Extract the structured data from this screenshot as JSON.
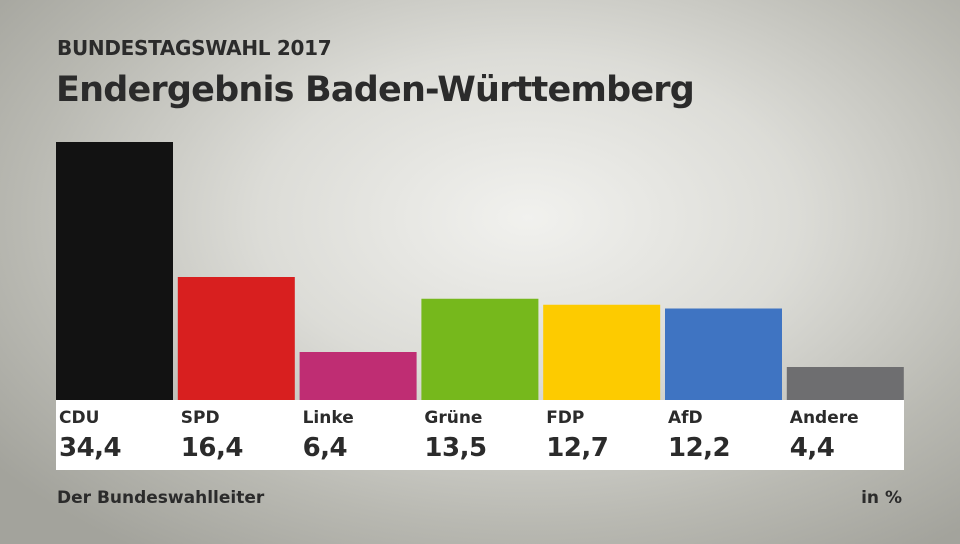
{
  "chart_data": {
    "type": "bar",
    "supertitle": "BUNDESTAGSWAHL 2017",
    "title": "Endergebnis Baden-Württemberg",
    "categories": [
      "CDU",
      "SPD",
      "Linke",
      "Grüne",
      "FDP",
      "AfD",
      "Andere"
    ],
    "values": [
      34.4,
      16.4,
      6.4,
      13.5,
      12.7,
      12.2,
      4.4
    ],
    "value_labels": [
      "34,4",
      "16,4",
      "6,4",
      "13,5",
      "12,7",
      "12,2",
      "4,4"
    ],
    "colors": [
      "#121212",
      "#d81f1f",
      "#bf2d73",
      "#76b81c",
      "#fdcb00",
      "#3f74c2",
      "#6e6e70"
    ],
    "unit": "in %",
    "source": "Der Bundeswahlleiter",
    "ylim": [
      0,
      34.4
    ],
    "grid": false
  }
}
